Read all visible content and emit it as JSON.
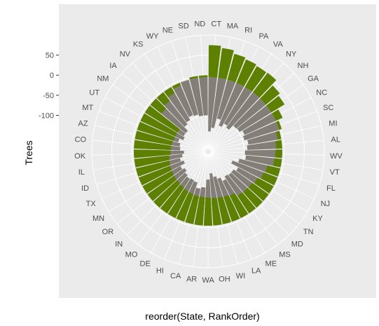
{
  "chart_data": {
    "type": "bar",
    "coordinate_system": "polar",
    "xlabel": "reorder(State, RankOrder)",
    "ylabel": "Trees",
    "ylim": [
      -190,
      100
    ],
    "y_ticks": [
      50,
      0,
      -50,
      -100
    ],
    "y_tick_labels": [
      "50",
      "0",
      "-50",
      "-100"
    ],
    "panel_background": "#ebebeb",
    "grid_color": "#ffffff",
    "categories": [
      "CT",
      "MA",
      "RI",
      "PA",
      "VA",
      "NY",
      "NH",
      "GA",
      "NC",
      "SC",
      "MI",
      "AL",
      "WV",
      "VT",
      "FL",
      "NJ",
      "KY",
      "TN",
      "MD",
      "MS",
      "ME",
      "LA",
      "WI",
      "OH",
      "WA",
      "AR",
      "CA",
      "HI",
      "DE",
      "MO",
      "IN",
      "OR",
      "MN",
      "TX",
      "ID",
      "IL",
      "OK",
      "CO",
      "AZ",
      "MT",
      "UT",
      "NM",
      "IA",
      "NV",
      "KS",
      "WY",
      "NE",
      "SD",
      "ND"
    ],
    "series": [
      {
        "color": "#5e8000",
        "values": [
          -5,
          -5,
          -5,
          -5,
          -5,
          -5,
          -5,
          -5,
          -5,
          -5,
          -5,
          -5,
          -5,
          -5,
          -5,
          -5,
          -5,
          -5,
          -5,
          -5,
          -5,
          -5,
          -5,
          -5,
          -5,
          -5,
          -5,
          -5,
          -5,
          -5,
          -5,
          -5,
          -5,
          -5,
          -5,
          -5,
          -5,
          -5,
          -5,
          -5,
          -5,
          -5,
          -5,
          -5,
          -5,
          -5,
          -5,
          -5,
          -5
        ],
        "tops": [
          75,
          70,
          62,
          58,
          55,
          56,
          40,
          34,
          14,
          2,
          -14,
          -20,
          -22,
          -24,
          -38,
          -42,
          -50,
          -55,
          -56,
          -57,
          -67,
          -70,
          -72,
          -73,
          -75,
          -76,
          -76,
          -78,
          -79,
          -82,
          -84,
          -85,
          -87,
          -88,
          -90,
          -92,
          -96,
          -97,
          -98,
          -100,
          -100,
          -100,
          -40,
          -32,
          -22,
          -12,
          -5,
          0,
          0
        ]
      },
      {
        "color": "#837f78",
        "values": [
          -5,
          -5,
          -5,
          -5,
          -5,
          -5,
          -5,
          -5,
          -5,
          -5,
          -5,
          -5,
          -5,
          -5,
          -5,
          -5,
          -5,
          -5,
          -5,
          -5,
          -5,
          -5,
          -5,
          -5,
          -5,
          -5,
          -5,
          -5,
          -5,
          -5,
          -5,
          -5,
          -5,
          -5,
          -5,
          -5,
          -5,
          -5,
          -5,
          -5,
          -5,
          -5,
          -5,
          -5,
          -5,
          -5,
          -5,
          -5,
          -5
        ],
        "inner_tops": [
          -140,
          -130,
          -105,
          -120,
          -110,
          -115,
          -100,
          -98,
          -90,
          -95,
          -88,
          -92,
          -98,
          -95,
          -110,
          -125,
          -105,
          -112,
          -112,
          -115,
          -108,
          -118,
          -125,
          -135,
          -120,
          -100,
          -95,
          -108,
          -110,
          -108,
          -112,
          -118,
          -112,
          -125,
          -118,
          -125,
          -130,
          -120,
          -118,
          -112,
          -122,
          -118,
          -118,
          -105,
          -100,
          -92,
          -95,
          -100,
          -100
        ]
      }
    ]
  }
}
